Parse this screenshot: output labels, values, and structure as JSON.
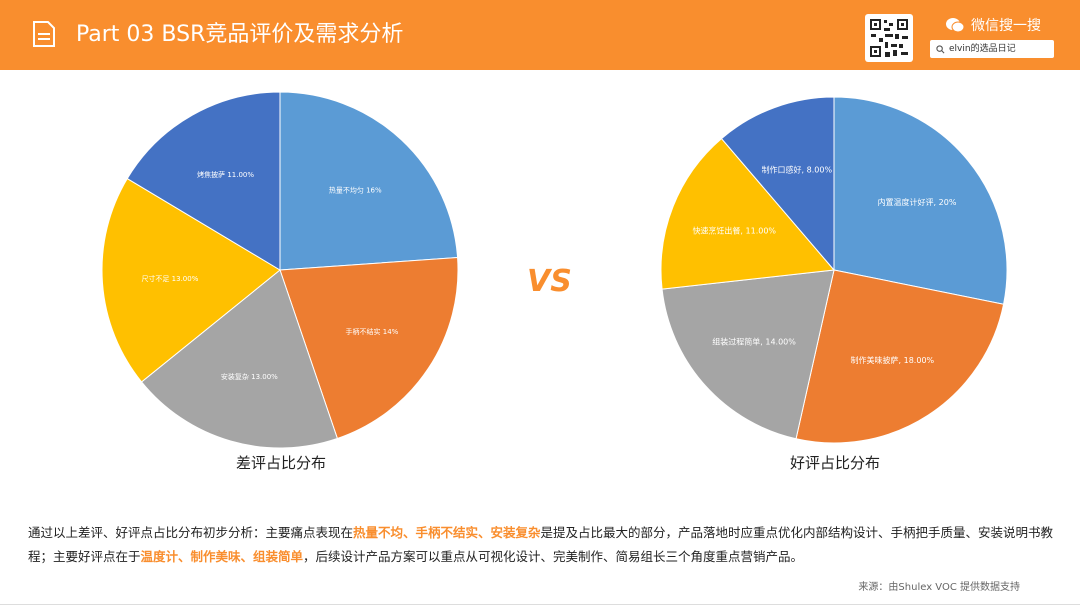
{
  "header": {
    "title": "Part 03  BSR竞品评价及需求分析",
    "wechat_label": "微信搜一搜",
    "search_text": "elvin的选品日记",
    "accent": "#F98E2E"
  },
  "chart_data": [
    {
      "type": "pie",
      "title": "差评占比分布",
      "labels": [
        "热量不均匀 16%",
        "手柄不结实 14%",
        "安装复杂 13.00%",
        "尺寸不足 13.00%",
        "烤焦披萨 11.00%"
      ],
      "categories": [
        "热量不均匀",
        "手柄不结实",
        "安装复杂",
        "尺寸不足",
        "烤焦披萨"
      ],
      "values": [
        16,
        14,
        13,
        13,
        11
      ],
      "colors": [
        "#5B9BD5",
        "#ED7D31",
        "#A5A5A5",
        "#FFC000",
        "#4472C4"
      ]
    },
    {
      "type": "pie",
      "title": "好评占比分布",
      "labels": [
        "内置温度计好评, 20%",
        "制作美味披萨, 18.00%",
        "组装过程简单, 14.00%",
        "快速烹饪出餐, 11.00%",
        "制作口感好, 8.00%"
      ],
      "categories": [
        "内置温度计好评",
        "制作美味披萨",
        "组装过程简单",
        "快速烹饪出餐",
        "制作口感好"
      ],
      "values": [
        20,
        18,
        14,
        11,
        8
      ],
      "colors": [
        "#5B9BD5",
        "#ED7D31",
        "#A5A5A5",
        "#FFC000",
        "#4472C4"
      ]
    }
  ],
  "vs": "VS",
  "summary": {
    "p1": "通过以上差评、好评点占比分布初步分析：主要痛点表现在",
    "h1": "热量不均、手柄不结实、安装复杂",
    "p2": "是提及占比最大的部分，产品落地时应重点优化内部结构设计、手柄把手质量、安装说明书教程；主要好评点在于",
    "h2": "温度计、制作美味、组装简单",
    "p3": "，后续设计产品方案可以重点从可视化设计、完美制作、简易组长三个角度重点营销产品。"
  },
  "source": "来源：由Shulex VOC 提供数据支持"
}
